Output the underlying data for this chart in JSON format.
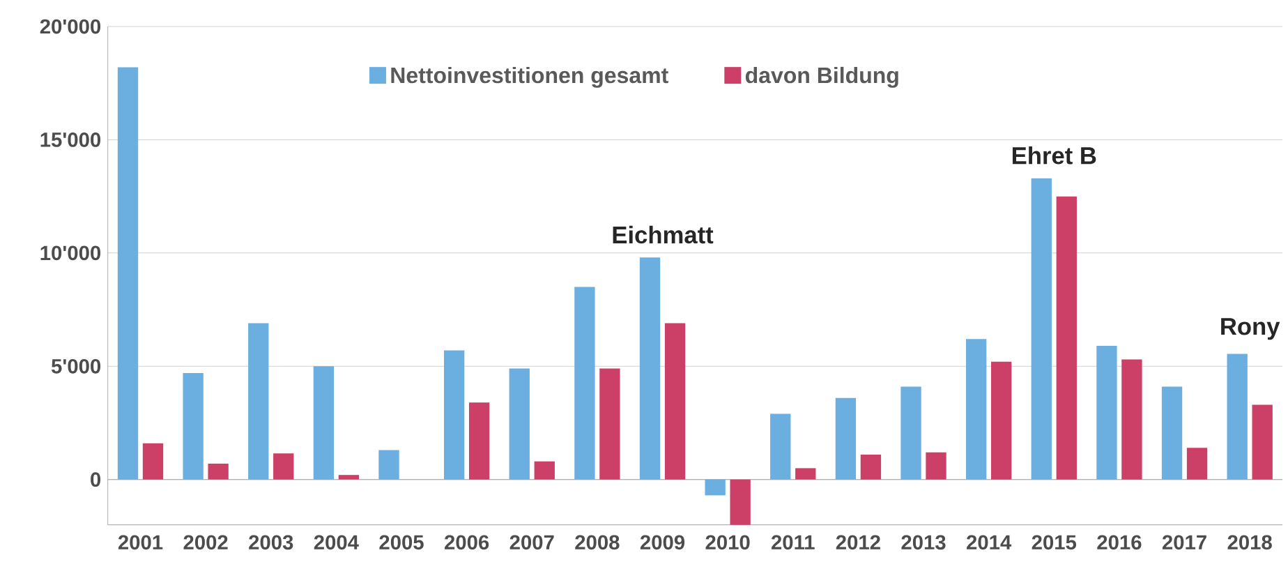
{
  "chart_data": {
    "type": "bar",
    "categories": [
      "2001",
      "2002",
      "2003",
      "2004",
      "2005",
      "2006",
      "2007",
      "2008",
      "2009",
      "2010",
      "2011",
      "2012",
      "2013",
      "2014",
      "2015",
      "2016",
      "2017",
      "2018"
    ],
    "series": [
      {
        "name": "Nettoinvestitionen gesamt",
        "color": "#6aafe0",
        "values": [
          18200,
          4700,
          6900,
          5000,
          1300,
          5700,
          4900,
          8500,
          9800,
          -700,
          2900,
          3600,
          4100,
          6200,
          13300,
          5900,
          4100,
          5550
        ]
      },
      {
        "name": "davon Bildung",
        "color": "#cc4068",
        "values": [
          1600,
          700,
          1150,
          200,
          0,
          3400,
          800,
          4900,
          6900,
          -2000,
          500,
          1100,
          1200,
          5200,
          12500,
          5300,
          1400,
          3300
        ]
      }
    ],
    "ylim": [
      -2000,
      20000
    ],
    "yticks": [
      0,
      {
        "value": 5000,
        "label": "5'000"
      },
      {
        "value": 10000,
        "label": "10'000"
      },
      {
        "value": 15000,
        "label": "15'000"
      },
      {
        "value": 20000,
        "label": "20'000"
      }
    ],
    "grid": "y",
    "legend": "top",
    "annotations": [
      {
        "text": "Eichmatt",
        "x": "2009",
        "y": 9800
      },
      {
        "text": "Ehret B",
        "x": "2015",
        "y": 13300
      },
      {
        "text": "Rony",
        "x": "2018",
        "y": 5550
      }
    ]
  }
}
